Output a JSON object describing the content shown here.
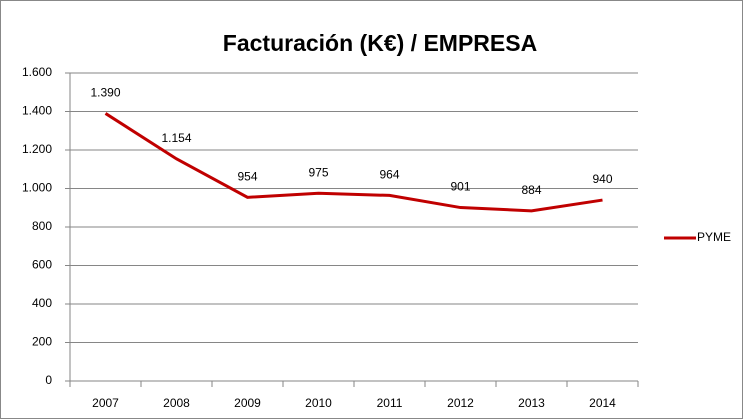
{
  "chart_data": {
    "type": "line",
    "title": "Facturación (K€) / EMPRESA",
    "categories": [
      "2007",
      "2008",
      "2009",
      "2010",
      "2011",
      "2012",
      "2013",
      "2014"
    ],
    "series": [
      {
        "name": "PYME",
        "color": "#c00000",
        "values": [
          1390,
          1154,
          954,
          975,
          964,
          901,
          884,
          940
        ],
        "value_labels": [
          "1.390",
          "1.154",
          "954",
          "975",
          "964",
          "901",
          "884",
          "940"
        ]
      }
    ],
    "ylim": [
      0,
      1600
    ],
    "yticks": [
      0,
      200,
      400,
      600,
      800,
      {
        "value": 1000,
        "label": "1.000"
      },
      {
        "value": 1200,
        "label": "1.200"
      },
      {
        "value": 1400,
        "label": "1.400"
      },
      {
        "value": 1600,
        "label": "1.600"
      }
    ],
    "grid": true,
    "legend": "right"
  }
}
